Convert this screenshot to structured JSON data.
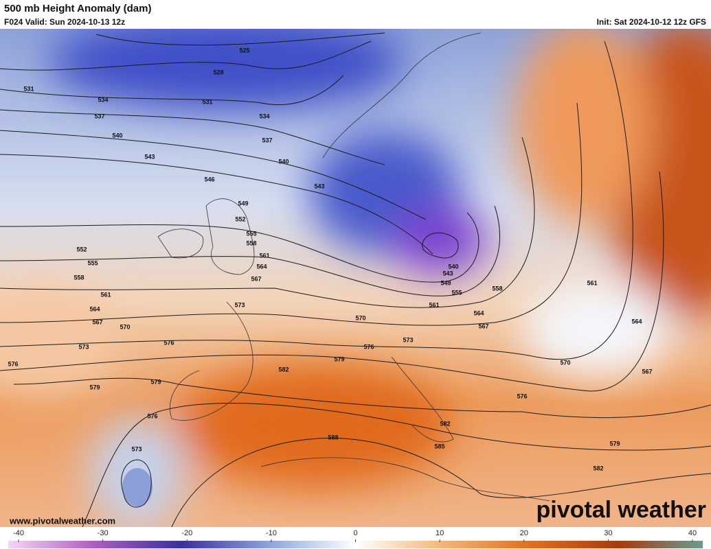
{
  "header": {
    "title": "500 mb Height Anomaly (dam)",
    "valid": "F024 Valid: Sun 2024-10-13 12z",
    "init": "Init: Sat 2024-10-12 12z GFS"
  },
  "contour_labels": [
    "525",
    "528",
    "531",
    "531",
    "534",
    "534",
    "537",
    "537",
    "540",
    "540",
    "543",
    "543",
    "546",
    "549",
    "552",
    "552",
    "555",
    "555",
    "558",
    "558",
    "561",
    "561",
    "564",
    "564",
    "567",
    "567",
    "570",
    "570",
    "573",
    "573",
    "576",
    "576",
    "576",
    "579",
    "579",
    "579",
    "582",
    "588",
    "582",
    "585",
    "576",
    "573",
    "540",
    "543",
    "549",
    "555",
    "558",
    "561",
    "564",
    "567",
    "573",
    "561",
    "564",
    "567",
    "570",
    "576",
    "579",
    "582"
  ],
  "website": "www.pivotalweather.com",
  "logo": "pivotal weather",
  "colorbar": {
    "lim": [
      -40,
      40
    ],
    "ticks": [
      -40,
      -30,
      -20,
      -10,
      0,
      10,
      20,
      30,
      40
    ]
  }
}
